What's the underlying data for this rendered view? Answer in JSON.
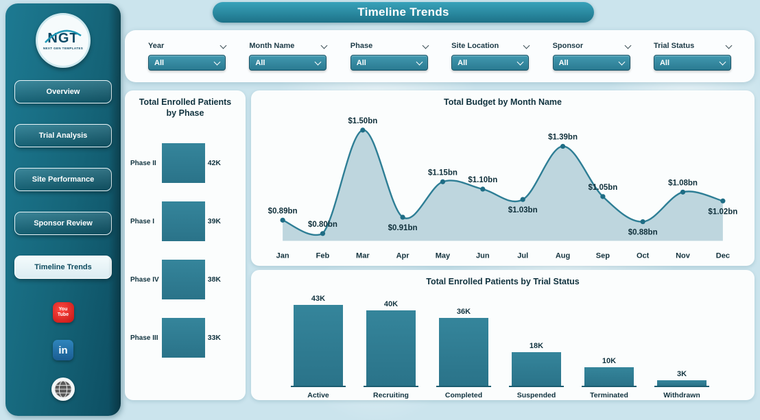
{
  "header": {
    "title": "Timeline Trends"
  },
  "sidebar": {
    "logo": {
      "text": "NGT",
      "subtext": "NEXT GEN TEMPLATES"
    },
    "nav": [
      {
        "label": "Overview",
        "active": false
      },
      {
        "label": "Trial Analysis",
        "active": false
      },
      {
        "label": "Site Performance",
        "active": false
      },
      {
        "label": "Sponsor Review",
        "active": false
      },
      {
        "label": "Timeline Trends",
        "active": true
      }
    ],
    "social": {
      "youtube": {
        "line1": "You",
        "line2": "Tube"
      },
      "linkedin": {
        "label": "in"
      }
    }
  },
  "filters": [
    {
      "label": "Year",
      "value": "All"
    },
    {
      "label": "Month Name",
      "value": "All"
    },
    {
      "label": "Phase",
      "value": "All"
    },
    {
      "label": "Site Location",
      "value": "All"
    },
    {
      "label": "Sponsor",
      "value": "All"
    },
    {
      "label": "Trial Status",
      "value": "All"
    }
  ],
  "chart_data": [
    {
      "id": "patients_by_phase",
      "type": "bar",
      "orientation": "horizontal",
      "title": "Total Enrolled Patients by Phase",
      "categories": [
        "Phase II",
        "Phase I",
        "Phase IV",
        "Phase III"
      ],
      "values": [
        42,
        39,
        38,
        33
      ],
      "labels": [
        "42K",
        "39K",
        "38K",
        "33K"
      ],
      "xlim": [
        0,
        45
      ],
      "grid": false
    },
    {
      "id": "budget_by_month",
      "type": "area",
      "title": "Total Budget by Month Name",
      "categories": [
        "Jan",
        "Feb",
        "Mar",
        "Apr",
        "May",
        "Jun",
        "Jul",
        "Aug",
        "Sep",
        "Oct",
        "Nov",
        "Dec"
      ],
      "values": [
        0.89,
        0.8,
        1.5,
        0.91,
        1.15,
        1.1,
        1.03,
        1.39,
        1.05,
        0.88,
        1.08,
        1.02
      ],
      "labels": [
        "$0.89bn",
        "$0.80bn",
        "$1.50bn",
        "$0.91bn",
        "$1.15bn",
        "$1.10bn",
        "$1.03bn",
        "$1.39bn",
        "$1.05bn",
        "$0.88bn",
        "$1.08bn",
        "$1.02bn"
      ],
      "label_side": [
        "above",
        "above",
        "above",
        "below",
        "above",
        "above",
        "below",
        "above",
        "above",
        "below",
        "above",
        "below"
      ],
      "ylim": [
        0.75,
        1.55
      ],
      "grid": false,
      "legend": "none"
    },
    {
      "id": "patients_by_status",
      "type": "bar",
      "orientation": "vertical",
      "title": "Total Enrolled Patients by Trial Status",
      "categories": [
        "Active",
        "Recruiting",
        "Completed",
        "Suspended",
        "Terminated",
        "Withdrawn"
      ],
      "values": [
        43,
        40,
        36,
        18,
        10,
        3
      ],
      "labels": [
        "43K",
        "40K",
        "36K",
        "18K",
        "10K",
        "3K"
      ],
      "ylim": [
        0,
        45
      ],
      "grid": false
    }
  ],
  "colors": {
    "accent": "#2e7e95",
    "sidebar": "#156478",
    "bar": "#2e7e95",
    "area_fill": "#b7d2da",
    "background": "#cbe4ed",
    "youtube_red": "#c31212",
    "linkedin_blue": "#1b5d93"
  }
}
